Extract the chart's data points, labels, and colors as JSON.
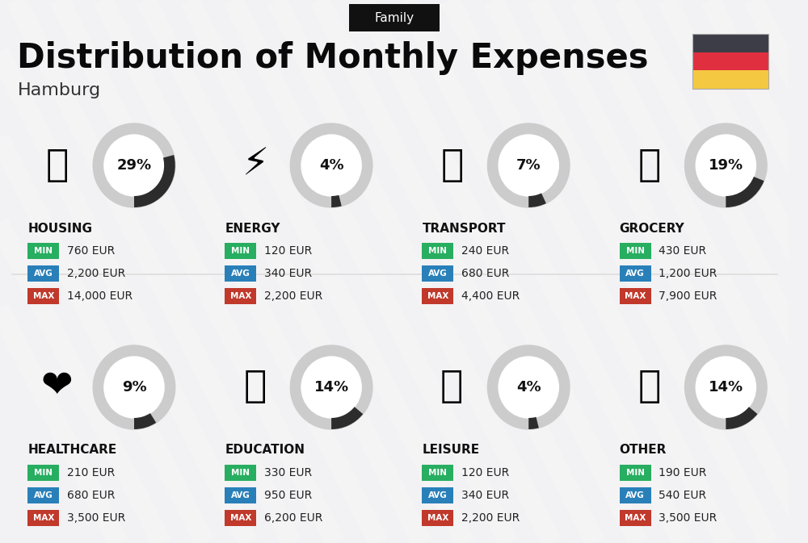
{
  "title": "Distribution of Monthly Expenses",
  "subtitle": "Hamburg",
  "tag": "Family",
  "bg_color": "#f2f2f4",
  "categories": [
    {
      "name": "HOUSING",
      "pct": 29,
      "min": "760 EUR",
      "avg": "2,200 EUR",
      "max": "14,000 EUR",
      "row": 0,
      "col": 0
    },
    {
      "name": "ENERGY",
      "pct": 4,
      "min": "120 EUR",
      "avg": "340 EUR",
      "max": "2,200 EUR",
      "row": 0,
      "col": 1
    },
    {
      "name": "TRANSPORT",
      "pct": 7,
      "min": "240 EUR",
      "avg": "680 EUR",
      "max": "4,400 EUR",
      "row": 0,
      "col": 2
    },
    {
      "name": "GROCERY",
      "pct": 19,
      "min": "430 EUR",
      "avg": "1,200 EUR",
      "max": "7,900 EUR",
      "row": 0,
      "col": 3
    },
    {
      "name": "HEALTHCARE",
      "pct": 9,
      "min": "210 EUR",
      "avg": "680 EUR",
      "max": "3,500 EUR",
      "row": 1,
      "col": 0
    },
    {
      "name": "EDUCATION",
      "pct": 14,
      "min": "330 EUR",
      "avg": "950 EUR",
      "max": "6,200 EUR",
      "row": 1,
      "col": 1
    },
    {
      "name": "LEISURE",
      "pct": 4,
      "min": "120 EUR",
      "avg": "340 EUR",
      "max": "2,200 EUR",
      "row": 1,
      "col": 2
    },
    {
      "name": "OTHER",
      "pct": 14,
      "min": "190 EUR",
      "avg": "540 EUR",
      "max": "3,500 EUR",
      "row": 1,
      "col": 3
    }
  ],
  "min_color": "#27ae60",
  "avg_color": "#2980b9",
  "max_color": "#c0392b",
  "donut_filled_color": "#2c2c2c",
  "donut_empty_color": "#cccccc",
  "donut_bg_color": "#ffffff",
  "category_name_color": "#111111",
  "title_color": "#0a0a0a",
  "subtitle_color": "#333333",
  "flag_colors": [
    "#3d3d47",
    "#e03040",
    "#f5c842"
  ],
  "tag_bg": "#111111",
  "tag_text": "#ffffff",
  "divider_color": "#dddddd",
  "stripe_color": "#ffffff",
  "stripe_alpha": 0.18
}
